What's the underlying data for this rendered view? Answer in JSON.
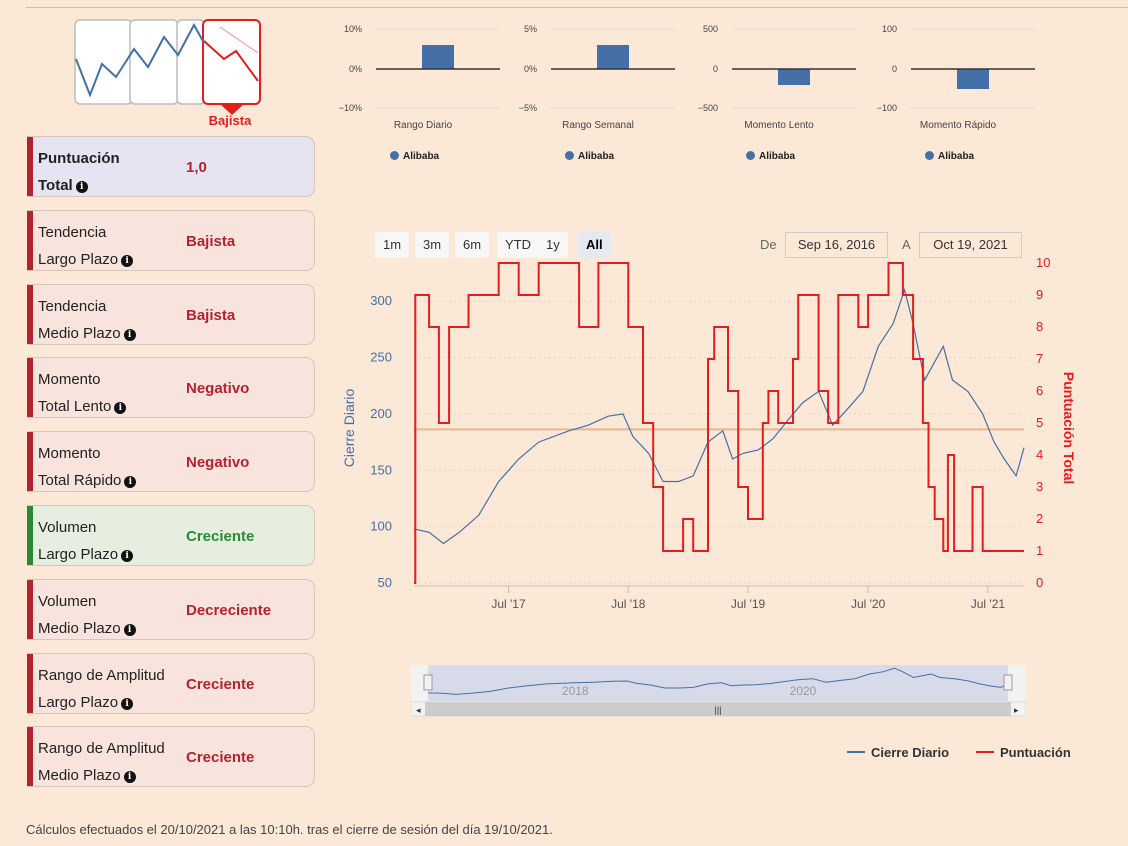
{
  "trend_badge": {
    "label": "Bajista"
  },
  "panels": [
    {
      "line1": "Puntuación",
      "line2": "Total",
      "value": "1,0",
      "kind": "total"
    },
    {
      "line1": "Tendencia",
      "line2": "Largo Plazo",
      "value": "Bajista",
      "kind": "neg"
    },
    {
      "line1": "Tendencia",
      "line2": "Medio Plazo",
      "value": "Bajista",
      "kind": "neg"
    },
    {
      "line1": "Momento",
      "line2": "Total Lento",
      "value": "Negativo",
      "kind": "neg"
    },
    {
      "line1": "Momento",
      "line2": "Total Rápido",
      "value": "Negativo",
      "kind": "neg"
    },
    {
      "line1": "Volumen",
      "line2": "Largo Plazo",
      "value": "Creciente",
      "kind": "pos"
    },
    {
      "line1": "Volumen",
      "line2": "Medio Plazo",
      "value": "Decreciente",
      "kind": "neg"
    },
    {
      "line1": "Rango de Amplitud",
      "line2": "Largo Plazo",
      "value": "Creciente",
      "kind": "neg"
    },
    {
      "line1": "Rango de Amplitud",
      "line2": "Medio Plazo",
      "value": "Creciente",
      "kind": "neg"
    }
  ],
  "mini_charts": [
    {
      "title": "Rango Diario",
      "ticks": [
        "10%",
        "0%",
        "−10%"
      ],
      "value": 6,
      "max": 10,
      "legend": "Alibaba"
    },
    {
      "title": "Rango Semanal",
      "ticks": [
        "5%",
        "0%",
        "−5%"
      ],
      "value": 3,
      "max": 5,
      "legend": "Alibaba"
    },
    {
      "title": "Momento Lento",
      "ticks": [
        "500",
        "0",
        "−500"
      ],
      "value": -200,
      "max": 500,
      "legend": "Alibaba"
    },
    {
      "title": "Momento Rápido",
      "ticks": [
        "100",
        "0",
        "−100"
      ],
      "value": -50,
      "max": 100,
      "legend": "Alibaba"
    }
  ],
  "range_selector": {
    "buttons": [
      "1m",
      "3m",
      "6m",
      "YTD",
      "1y",
      "All"
    ],
    "active": "All",
    "from_label": "De",
    "from": "Sep 16, 2016",
    "to_label": "A",
    "to": "Oct 19, 2021"
  },
  "chart_data": {
    "type": "line",
    "x_start": "2016-09-16",
    "x_end": "2021-10-19",
    "x_ticks": [
      "Jul '17",
      "Jul '18",
      "Jul '19",
      "Jul '20",
      "Jul '21"
    ],
    "y_left": {
      "label": "Cierre Diario",
      "ticks": [
        "300",
        "250",
        "200",
        "150",
        "100",
        "50"
      ],
      "range": [
        50,
        325
      ]
    },
    "y_right": {
      "label": "Puntuación Total",
      "ticks": [
        "10",
        "9",
        "8",
        "7",
        "6",
        "5",
        "4",
        "3",
        "2",
        "1",
        "0"
      ],
      "range": [
        0,
        10
      ]
    },
    "reference_line": 4.8,
    "series": [
      {
        "name": "Cierre Diario",
        "color": "#4470a7",
        "axis": "left",
        "points": [
          [
            "2016-09-16",
            98
          ],
          [
            "2016-11-01",
            95
          ],
          [
            "2016-12-15",
            85
          ],
          [
            "2017-02-01",
            95
          ],
          [
            "2017-04-01",
            110
          ],
          [
            "2017-06-01",
            140
          ],
          [
            "2017-08-01",
            160
          ],
          [
            "2017-10-01",
            175
          ],
          [
            "2018-01-01",
            185
          ],
          [
            "2018-03-01",
            190
          ],
          [
            "2018-05-01",
            198
          ],
          [
            "2018-06-15",
            200
          ],
          [
            "2018-07-15",
            180
          ],
          [
            "2018-09-01",
            165
          ],
          [
            "2018-10-15",
            140
          ],
          [
            "2018-12-01",
            140
          ],
          [
            "2019-01-15",
            145
          ],
          [
            "2019-03-01",
            175
          ],
          [
            "2019-04-15",
            185
          ],
          [
            "2019-05-15",
            160
          ],
          [
            "2019-06-15",
            165
          ],
          [
            "2019-08-01",
            168
          ],
          [
            "2019-09-15",
            178
          ],
          [
            "2019-11-01",
            195
          ],
          [
            "2019-12-15",
            210
          ],
          [
            "2020-02-01",
            220
          ],
          [
            "2020-03-15",
            190
          ],
          [
            "2020-05-01",
            205
          ],
          [
            "2020-06-15",
            220
          ],
          [
            "2020-08-01",
            260
          ],
          [
            "2020-09-15",
            280
          ],
          [
            "2020-10-20",
            310
          ],
          [
            "2020-11-15",
            280
          ],
          [
            "2020-12-20",
            230
          ],
          [
            "2021-02-15",
            260
          ],
          [
            "2021-03-15",
            230
          ],
          [
            "2021-05-01",
            220
          ],
          [
            "2021-06-15",
            200
          ],
          [
            "2021-07-20",
            175
          ],
          [
            "2021-08-20",
            160
          ],
          [
            "2021-09-25",
            145
          ],
          [
            "2021-10-19",
            170
          ]
        ]
      },
      {
        "name": "Puntuación",
        "color": "#e11d1d",
        "axis": "right",
        "points": [
          [
            "2016-09-16",
            0
          ],
          [
            "2016-09-20",
            9
          ],
          [
            "2016-11-01",
            8
          ],
          [
            "2016-12-01",
            5
          ],
          [
            "2017-01-01",
            8
          ],
          [
            "2017-03-01",
            9
          ],
          [
            "2017-06-01",
            10
          ],
          [
            "2017-08-01",
            9
          ],
          [
            "2017-10-01",
            10
          ],
          [
            "2018-02-01",
            8
          ],
          [
            "2018-04-01",
            10
          ],
          [
            "2018-07-01",
            8
          ],
          [
            "2018-08-15",
            5
          ],
          [
            "2018-09-15",
            3
          ],
          [
            "2018-10-15",
            1
          ],
          [
            "2018-12-15",
            2
          ],
          [
            "2019-01-15",
            1
          ],
          [
            "2019-03-01",
            7
          ],
          [
            "2019-03-20",
            8
          ],
          [
            "2019-05-01",
            6
          ],
          [
            "2019-06-01",
            3
          ],
          [
            "2019-07-01",
            2
          ],
          [
            "2019-08-15",
            5
          ],
          [
            "2019-09-01",
            6
          ],
          [
            "2019-10-01",
            5
          ],
          [
            "2019-11-15",
            7
          ],
          [
            "2019-12-01",
            9
          ],
          [
            "2020-02-01",
            6
          ],
          [
            "2020-03-01",
            5
          ],
          [
            "2020-04-01",
            9
          ],
          [
            "2020-06-01",
            8
          ],
          [
            "2020-07-01",
            9
          ],
          [
            "2020-09-01",
            10
          ],
          [
            "2020-10-15",
            9
          ],
          [
            "2020-11-15",
            7
          ],
          [
            "2020-12-15",
            5
          ],
          [
            "2021-01-01",
            3
          ],
          [
            "2021-01-20",
            2
          ],
          [
            "2021-02-15",
            1
          ],
          [
            "2021-03-01",
            4
          ],
          [
            "2021-03-20",
            1
          ],
          [
            "2021-04-15",
            1
          ],
          [
            "2021-05-15",
            3
          ],
          [
            "2021-06-15",
            1
          ],
          [
            "2021-10-19",
            1
          ]
        ]
      }
    ],
    "navigator": {
      "labels": [
        "2018",
        "2020"
      ]
    }
  },
  "legend": {
    "series1": "Cierre Diario",
    "series2": "Puntuación"
  },
  "footer": "Cálculos efectuados el 20/10/2021 a las 10:10h. tras el cierre de sesión del día 19/10/2021."
}
